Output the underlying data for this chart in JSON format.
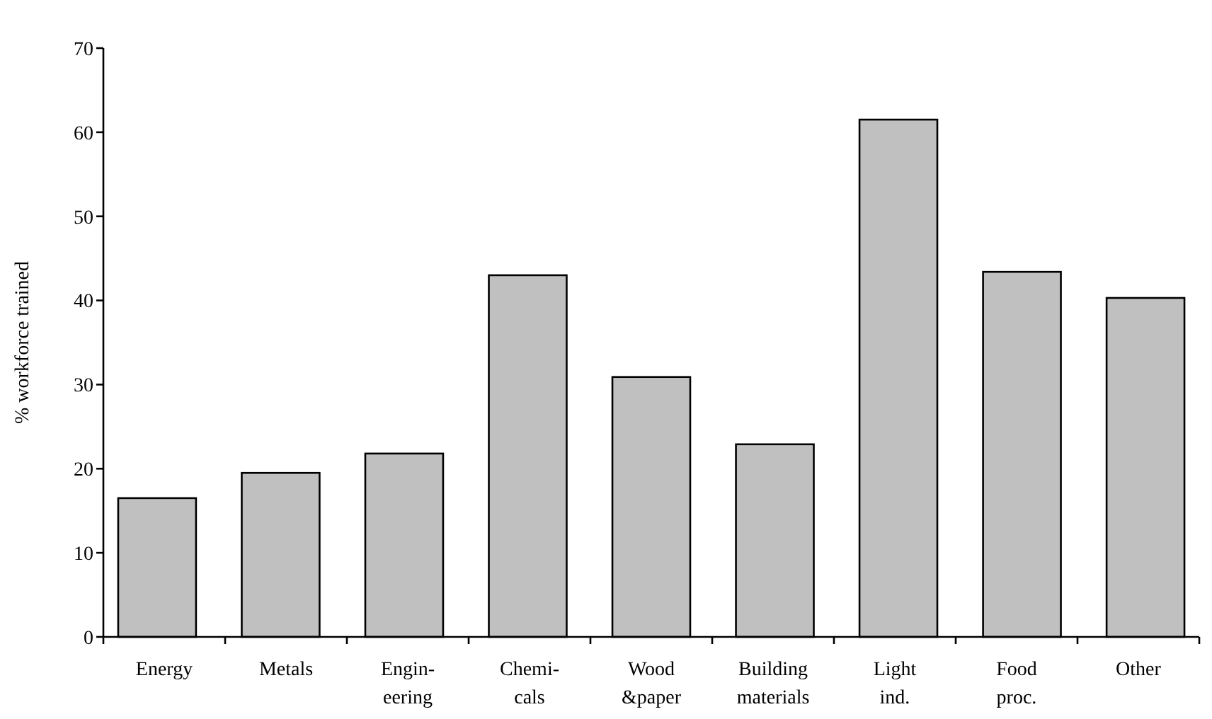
{
  "chart_data": {
    "type": "bar",
    "ylabel": "% workforce trained",
    "categories": [
      "Energy",
      "Metals",
      "Engin-\neering",
      "Chemi-\ncals",
      "Wood\n&paper",
      "Building\nmaterials",
      "Light\nind.",
      "Food\nproc.",
      "Other"
    ],
    "values": [
      16.5,
      19.5,
      21.8,
      43.0,
      30.9,
      22.9,
      61.5,
      43.4,
      40.3
    ],
    "color": "#c0c0c0",
    "ylim": [
      0,
      70
    ],
    "yticks": [
      0,
      10,
      20,
      30,
      40,
      50,
      60,
      70
    ],
    "grid": false
  }
}
